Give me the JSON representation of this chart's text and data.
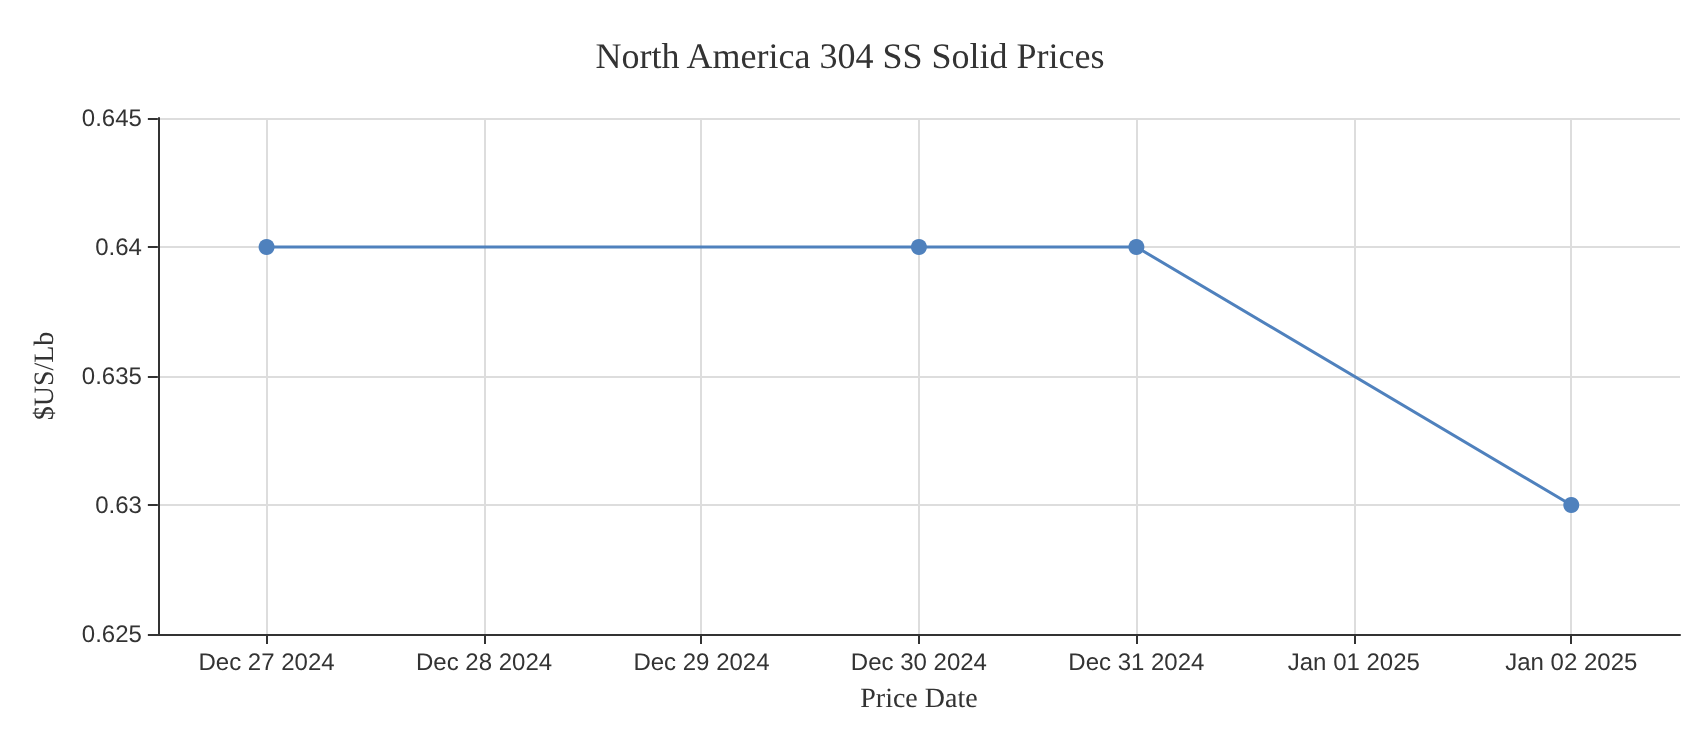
{
  "chart_data": {
    "type": "line",
    "title": "North America 304 SS Solid Prices",
    "xlabel": "Price Date",
    "ylabel": "$US/Lb",
    "x": [
      "2024-12-27",
      "2024-12-30",
      "2024-12-31",
      "2025-01-02"
    ],
    "series": [
      {
        "color": "#4f81bd",
        "values": [
          0.64,
          0.64,
          0.64,
          0.63
        ]
      }
    ],
    "xlim": [
      "2024-12-26T12:00",
      "2025-01-02T12:00"
    ],
    "xticks": [
      {
        "value": "2024-12-27",
        "label": "Dec 27 2024"
      },
      {
        "value": "2024-12-28",
        "label": "Dec 28 2024"
      },
      {
        "value": "2024-12-29",
        "label": "Dec 29 2024"
      },
      {
        "value": "2024-12-30",
        "label": "Dec 30 2024"
      },
      {
        "value": "2024-12-31",
        "label": "Dec 31 2024"
      },
      {
        "value": "2025-01-01",
        "label": "Jan 01 2025"
      },
      {
        "value": "2025-01-02",
        "label": "Jan 02 2025"
      }
    ],
    "ylim": [
      0.625,
      0.645
    ],
    "yticks": [
      0.625,
      0.63,
      0.635,
      0.64,
      0.645
    ],
    "grid": true,
    "marker": "circle",
    "line_style": "solid"
  }
}
